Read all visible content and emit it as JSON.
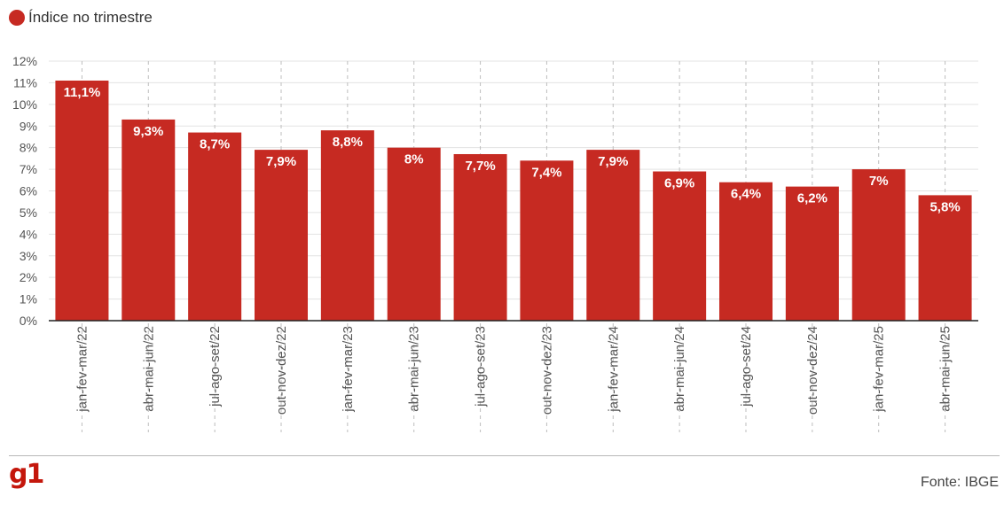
{
  "legend": {
    "label": "Índice no trimestre"
  },
  "footer": {
    "logo": "g1",
    "source": "Fonte: IBGE"
  },
  "colors": {
    "bar": "#c62a22",
    "logo": "#c4170c",
    "grid": "#e3e3e3",
    "axis": "#222222",
    "label_text": "#ffffff",
    "tick_text": "#555555"
  },
  "chart_data": {
    "type": "bar",
    "categories": [
      "jan-fev-mar/22",
      "abr-mai-jun/22",
      "jul-ago-set/22",
      "out-nov-dez/22",
      "jan-fev-mar/23",
      "abr-mai-jun/23",
      "jul-ago-set/23",
      "out-nov-dez/23",
      "jan-fev-mar/24",
      "abr-mai-jun/24",
      "jul-ago-set/24",
      "out-nov-dez/24",
      "jan-fev-mar/25",
      "abr-mai-jun/25"
    ],
    "series": [
      {
        "name": "Índice no trimestre",
        "values": [
          11.1,
          9.3,
          8.7,
          7.9,
          8.8,
          8.0,
          7.7,
          7.4,
          7.9,
          6.9,
          6.4,
          6.2,
          7.0,
          5.8
        ],
        "labels": [
          "11,1%",
          "9,3%",
          "8,7%",
          "7,9%",
          "8,8%",
          "8%",
          "7,7%",
          "7,4%",
          "7,9%",
          "6,9%",
          "6,4%",
          "6,2%",
          "7%",
          "5,8%"
        ]
      }
    ],
    "yticks": [
      "0%",
      "1%",
      "2%",
      "3%",
      "4%",
      "5%",
      "6%",
      "7%",
      "8%",
      "9%",
      "10%",
      "11%",
      "12%"
    ],
    "ylim": [
      0,
      12
    ],
    "xlabel": "",
    "ylabel": "",
    "grid": true,
    "legend_position": "top-left"
  }
}
